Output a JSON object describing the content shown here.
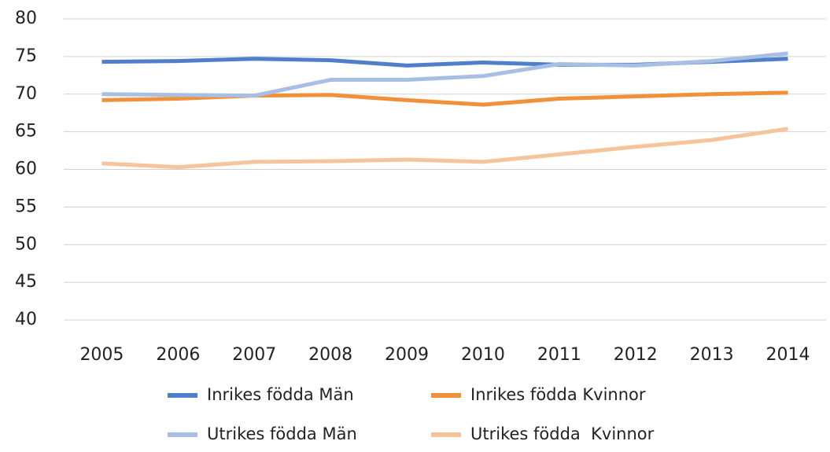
{
  "chart_data": {
    "type": "line",
    "categories": [
      "2005",
      "2006",
      "2007",
      "2008",
      "2009",
      "2010",
      "2011",
      "2012",
      "2013",
      "2014"
    ],
    "series": [
      {
        "name": "Inrikes födda Män",
        "color": "#4f7fcb",
        "values": [
          74.3,
          74.4,
          74.7,
          74.5,
          73.8,
          74.2,
          73.9,
          73.9,
          74.3,
          74.7
        ]
      },
      {
        "name": "Inrikes födda Kvinnor",
        "color": "#f0913a",
        "values": [
          69.2,
          69.4,
          69.8,
          69.9,
          69.2,
          68.6,
          69.4,
          69.7,
          70.0,
          70.2
        ]
      },
      {
        "name": "Utrikes födda Män",
        "color": "#a8bfe4",
        "values": [
          70.0,
          69.9,
          69.8,
          71.9,
          71.9,
          72.4,
          74.0,
          73.8,
          74.4,
          75.4
        ]
      },
      {
        "name": "Utrikes födda  Kvinnor",
        "color": "#f6c49b",
        "values": [
          60.8,
          60.3,
          61.0,
          61.1,
          61.3,
          61.0,
          62.0,
          63.0,
          63.9,
          65.4
        ]
      }
    ],
    "ylim": [
      40,
      80
    ],
    "yticks": [
      40,
      45,
      50,
      55,
      60,
      65,
      70,
      75,
      80
    ],
    "grid": true
  }
}
